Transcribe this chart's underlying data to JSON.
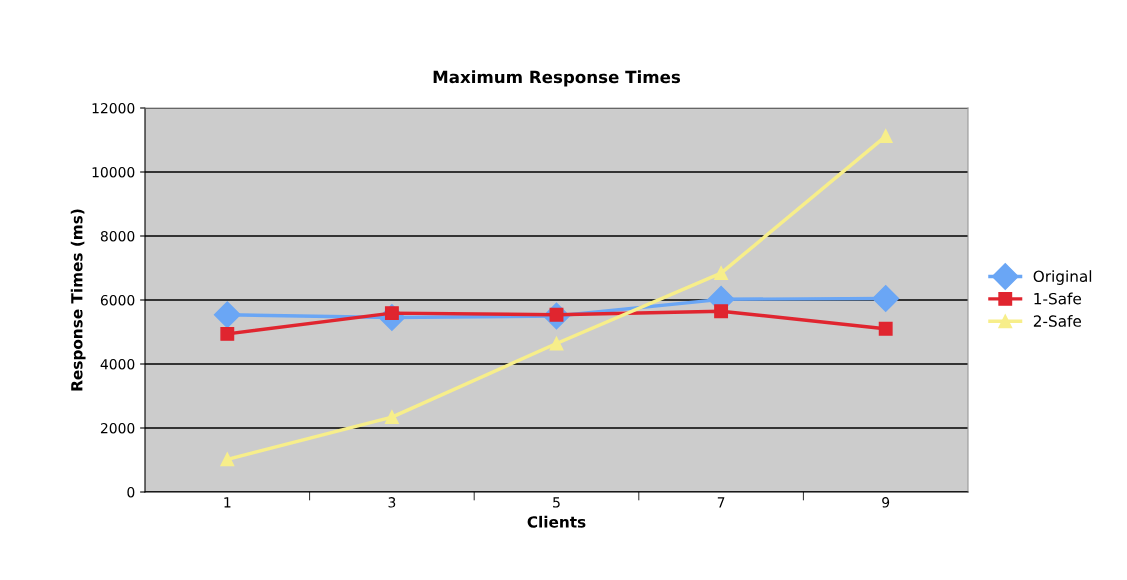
{
  "chart_data": {
    "type": "line",
    "title": "Maximum Response Times",
    "xlabel": "Clients",
    "ylabel": "Response Times (ms)",
    "categories": [
      "1",
      "3",
      "5",
      "7",
      "9"
    ],
    "series": [
      {
        "name": "Original",
        "color": "#6aa6f5",
        "marker": "diamond",
        "values": [
          5540,
          5450,
          5500,
          6020,
          6050
        ]
      },
      {
        "name": "1-Safe",
        "color": "#e0252f",
        "marker": "square",
        "values": [
          4940,
          5590,
          5540,
          5650,
          5100
        ]
      },
      {
        "name": "2-Safe",
        "color": "#f7ee8a",
        "marker": "triangle",
        "values": [
          1020,
          2340,
          4640,
          6840,
          11120
        ]
      }
    ],
    "ylim": [
      0,
      12000
    ],
    "yticks": [
      0,
      2000,
      4000,
      6000,
      8000,
      10000,
      12000
    ],
    "grid": "y",
    "legend": "right"
  }
}
